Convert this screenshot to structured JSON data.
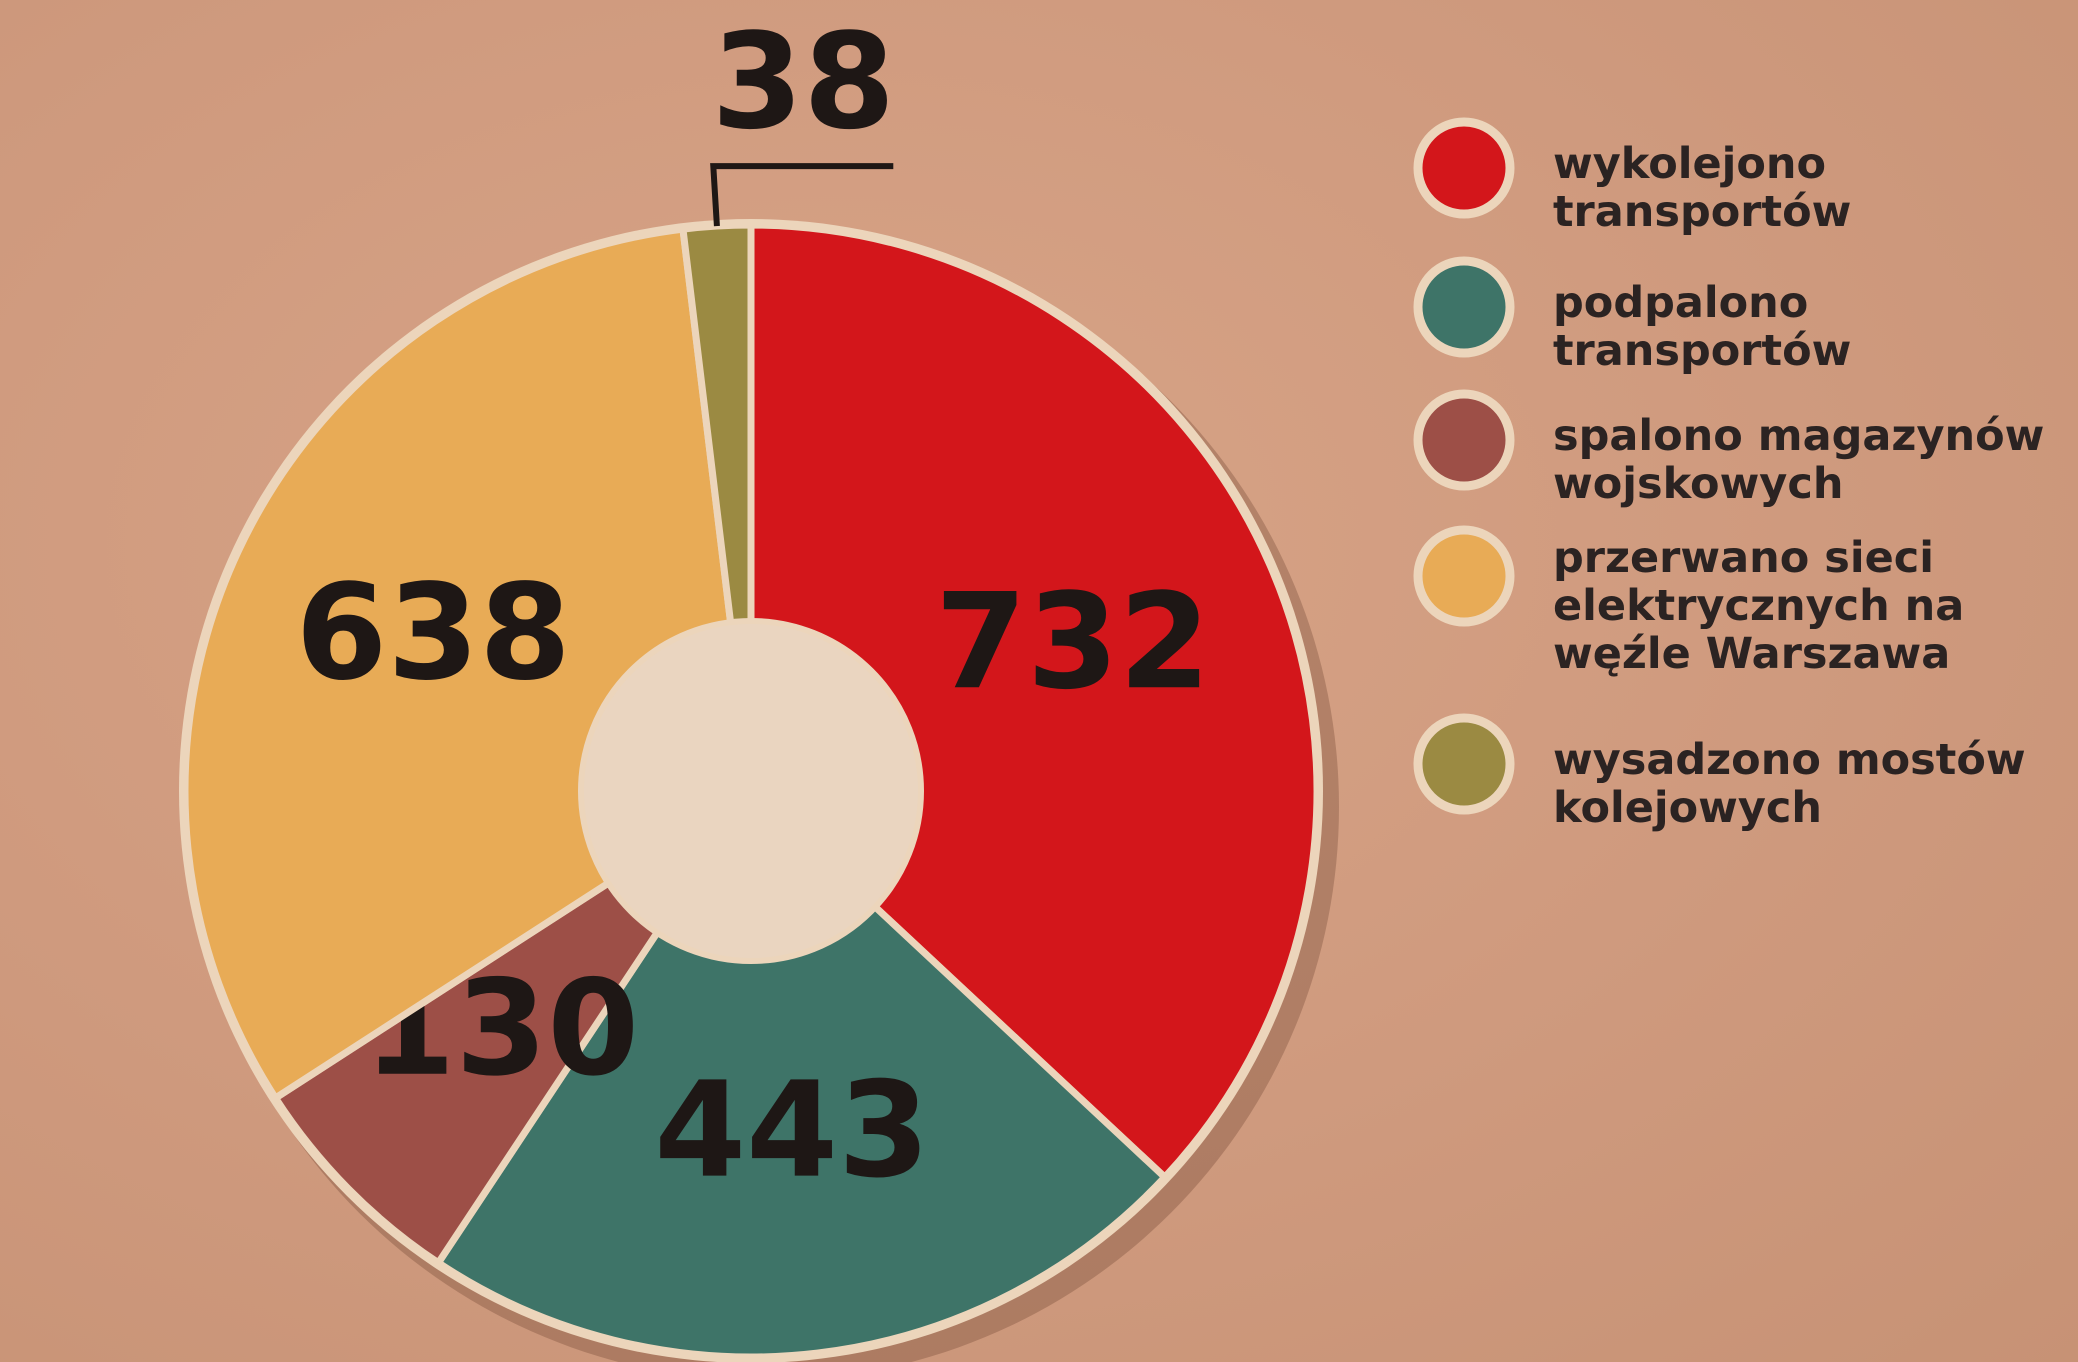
{
  "chart_data": {
    "type": "pie",
    "categories": [
      "wykolejono\ntransportów",
      "podpalono\ntransportów",
      "spalono magazynów\nwojskowych",
      "przerwano sieci\nelektrycznych na\nwęźle Warszawa",
      "wysadzono mostów\nkolejowych"
    ],
    "values": [
      732,
      443,
      130,
      638,
      38
    ],
    "colors": [
      "#d3161b",
      "#3e7468",
      "#9d4f47",
      "#e8ab56",
      "#9b8a42"
    ],
    "donut": true
  }
}
